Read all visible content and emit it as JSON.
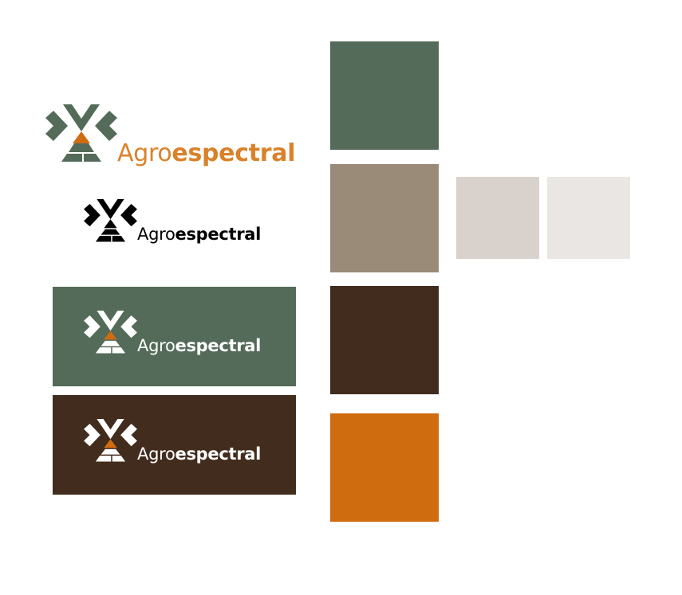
{
  "brand": {
    "name_part_1": "Agro",
    "name_part_2": "espectral"
  },
  "colors": {
    "green": "#536b58",
    "taupe": "#9a8a78",
    "brown": "#422c1d",
    "orange": "#cf6c0f",
    "light_taupe": "#d9d2cc",
    "off_white": "#e9e6e4",
    "white": "#ffffff",
    "black": "#000000"
  },
  "palette": [
    {
      "name": "green",
      "hex": "#536b58"
    },
    {
      "name": "taupe",
      "hex": "#9a8a78"
    },
    {
      "name": "brown",
      "hex": "#422c1d"
    },
    {
      "name": "orange",
      "hex": "#cf6c0f"
    },
    {
      "name": "light-taupe",
      "hex": "#d9d2cc"
    },
    {
      "name": "off-white",
      "hex": "#e9e6e4"
    }
  ],
  "logo_variants": [
    {
      "name": "primary-color",
      "icon_color": "#536b58",
      "accent": "#cf6c0f",
      "text_color": "#cf6c0f"
    },
    {
      "name": "black",
      "icon_color": "#000000",
      "accent": "#000000",
      "text_color": "#000000"
    },
    {
      "name": "white-on-green",
      "background": "#536b58",
      "icon_color": "#ffffff",
      "accent": "#cf6c0f",
      "text_color": "#ffffff"
    },
    {
      "name": "white-on-brown",
      "background": "#422c1d",
      "icon_color": "#ffffff",
      "accent": "#cf6c0f",
      "text_color": "#ffffff"
    }
  ]
}
